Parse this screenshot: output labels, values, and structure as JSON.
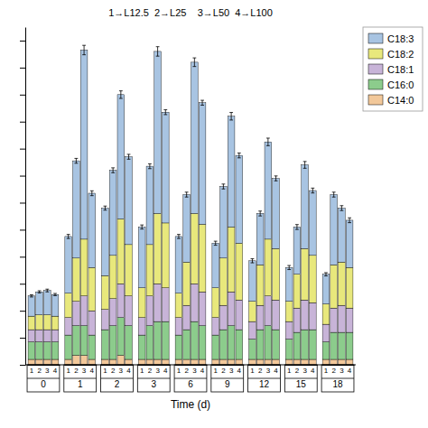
{
  "chart_data": {
    "type": "bar",
    "stacked": true,
    "annotation": "1→L12.5  2→L25    3→L50  4→L100",
    "xlabel": "Time (d)",
    "categories": [
      "0",
      "1",
      "2",
      "3",
      "6",
      "9",
      "12",
      "15",
      "18"
    ],
    "groups": [
      "1",
      "2",
      "3",
      "4"
    ],
    "series": [
      {
        "name": "C18:3",
        "color": "#a8c4e2",
        "values": [
          [
            1.5,
            1.7,
            1.8,
            1.6
          ],
          [
            4.2,
            7.2,
            14.0,
            5.5
          ],
          [
            5.0,
            6.3,
            9.2,
            6.5
          ],
          [
            4.5,
            5.8,
            12.0,
            8.2
          ],
          [
            4.2,
            5.0,
            11.2,
            9.0
          ],
          [
            3.3,
            5.3,
            8.2,
            6.5
          ],
          [
            3.0,
            3.8,
            7.2,
            5.2
          ],
          [
            2.5,
            3.5,
            6.2,
            4.8
          ],
          [
            2.2,
            5.2,
            4.0,
            3.5
          ]
        ]
      },
      {
        "name": "C18:2",
        "color": "#e8e87c",
        "values": [
          [
            1.0,
            1.1,
            1.1,
            1.0
          ],
          [
            1.8,
            3.2,
            4.2,
            3.2
          ],
          [
            2.5,
            3.2,
            4.8,
            3.8
          ],
          [
            2.2,
            3.8,
            5.2,
            4.8
          ],
          [
            1.8,
            3.2,
            5.2,
            5.0
          ],
          [
            2.2,
            3.5,
            4.8,
            4.2
          ],
          [
            1.5,
            3.0,
            4.2,
            3.8
          ],
          [
            1.5,
            2.5,
            3.8,
            3.5
          ],
          [
            1.5,
            3.2,
            3.2,
            3.0
          ]
        ]
      },
      {
        "name": "C18:1",
        "color": "#c8b4d8",
        "values": [
          [
            0.9,
            0.9,
            0.9,
            0.9
          ],
          [
            1.3,
            1.8,
            2.2,
            1.8
          ],
          [
            1.5,
            2.0,
            2.5,
            2.2
          ],
          [
            1.3,
            2.2,
            2.8,
            2.5
          ],
          [
            1.3,
            1.8,
            2.8,
            2.5
          ],
          [
            1.3,
            1.8,
            2.5,
            2.2
          ],
          [
            1.3,
            1.8,
            2.2,
            2.2
          ],
          [
            1.3,
            1.8,
            2.2,
            2.0
          ],
          [
            1.3,
            1.8,
            2.0,
            1.8
          ]
        ]
      },
      {
        "name": "C16:0",
        "color": "#8ccc8c",
        "values": [
          [
            1.3,
            1.3,
            1.3,
            1.3
          ],
          [
            1.8,
            2.2,
            2.2,
            1.8
          ],
          [
            2.2,
            2.5,
            2.8,
            2.5
          ],
          [
            1.8,
            2.5,
            2.8,
            2.8
          ],
          [
            1.8,
            2.2,
            2.8,
            2.5
          ],
          [
            1.8,
            2.2,
            2.5,
            2.2
          ],
          [
            1.5,
            2.2,
            2.5,
            2.2
          ],
          [
            1.5,
            2.0,
            2.2,
            2.2
          ],
          [
            1.3,
            2.0,
            2.0,
            2.0
          ]
        ]
      },
      {
        "name": "C14:0",
        "color": "#f2c89a",
        "values": [
          [
            0.4,
            0.4,
            0.4,
            0.4
          ],
          [
            0.4,
            0.7,
            0.7,
            0.4
          ],
          [
            0.4,
            0.4,
            0.7,
            0.4
          ],
          [
            0.4,
            0.4,
            0.4,
            0.4
          ],
          [
            0.4,
            0.4,
            0.4,
            0.4
          ],
          [
            0.4,
            0.4,
            0.4,
            0.4
          ],
          [
            0.4,
            0.4,
            0.4,
            0.4
          ],
          [
            0.4,
            0.4,
            0.4,
            0.4
          ],
          [
            0.4,
            0.4,
            0.4,
            0.4
          ]
        ]
      }
    ],
    "errors": [
      [
        0.08,
        0.08,
        0.1,
        0.08
      ],
      [
        0.15,
        0.18,
        0.35,
        0.18
      ],
      [
        0.15,
        0.18,
        0.28,
        0.18
      ],
      [
        0.15,
        0.18,
        0.35,
        0.18
      ],
      [
        0.15,
        0.18,
        0.32,
        0.18
      ],
      [
        0.15,
        0.18,
        0.28,
        0.18
      ],
      [
        0.15,
        0.18,
        0.28,
        0.18
      ],
      [
        0.15,
        0.18,
        0.25,
        0.18
      ],
      [
        0.12,
        0.18,
        0.18,
        0.18
      ]
    ],
    "ylim": [
      0,
      25
    ],
    "yticks": [
      0,
      2,
      4,
      6,
      8,
      10,
      12,
      14,
      16,
      18,
      20,
      22,
      24
    ],
    "tick_labels": "x",
    "grid": false,
    "legend": "right"
  }
}
